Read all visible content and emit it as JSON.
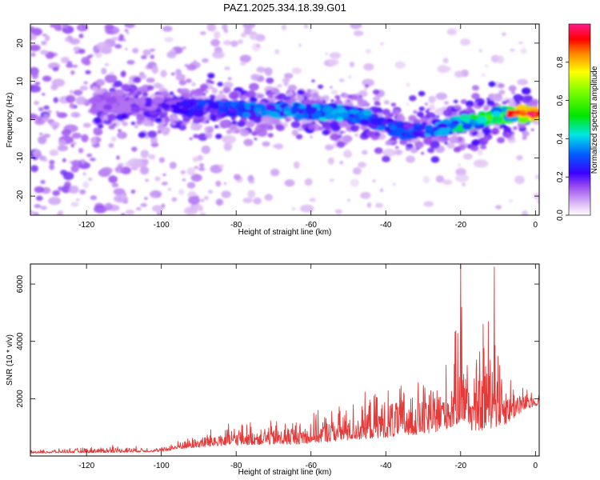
{
  "title": "PAZ1.2025.334.18.39.G01",
  "chart_data": [
    {
      "type": "heatmap",
      "xlabel": "Height of straight line (km)",
      "ylabel": "Frequency (Hz)",
      "xlim": [
        -135,
        1
      ],
      "ylim": [
        -25,
        25
      ],
      "xticks": [
        -120,
        -100,
        -80,
        -60,
        -40,
        -20,
        0
      ],
      "yticks": [
        -20,
        -10,
        0,
        10,
        20
      ],
      "colorbar": {
        "label": "Normalized spectral amplitude",
        "range": [
          0,
          1
        ],
        "ticks": [
          0.0,
          0.2,
          0.4,
          0.6,
          0.8
        ]
      },
      "ridge": {
        "description": "Dominant frequency ridge vs height",
        "points": [
          {
            "x": -115,
            "y": 4,
            "amp": 0.15
          },
          {
            "x": -100,
            "y": 3.5,
            "amp": 0.2
          },
          {
            "x": -85,
            "y": 3,
            "amp": 0.3
          },
          {
            "x": -70,
            "y": 2.5,
            "amp": 0.35
          },
          {
            "x": -55,
            "y": 2,
            "amp": 0.4
          },
          {
            "x": -45,
            "y": 0.5,
            "amp": 0.35
          },
          {
            "x": -35,
            "y": -3,
            "amp": 0.3
          },
          {
            "x": -25,
            "y": -2,
            "amp": 0.4
          },
          {
            "x": -15,
            "y": 0,
            "amp": 0.5
          },
          {
            "x": -7,
            "y": 1.5,
            "amp": 0.6
          },
          {
            "x": 0,
            "y": 1.5,
            "amp": 1.0
          }
        ]
      }
    },
    {
      "type": "line",
      "xlabel": "Height of straight line (km)",
      "ylabel": "SNR (10 * v/v)",
      "xlim": [
        -135,
        1
      ],
      "ylim": [
        0,
        6700
      ],
      "xticks": [
        -120,
        -100,
        -80,
        -60,
        -40,
        -20,
        0
      ],
      "yticks": [
        2000,
        4000,
        6000
      ],
      "series": [
        {
          "name": "SNR",
          "color": "#e53a3a",
          "envelope": [
            {
              "x": -135,
              "base": 100,
              "peak": 200
            },
            {
              "x": -113,
              "base": 120,
              "peak": 380
            },
            {
              "x": -100,
              "base": 150,
              "peak": 320
            },
            {
              "x": -95,
              "base": 250,
              "peak": 600
            },
            {
              "x": -85,
              "base": 350,
              "peak": 1100
            },
            {
              "x": -75,
              "base": 400,
              "peak": 1300
            },
            {
              "x": -65,
              "base": 400,
              "peak": 1400
            },
            {
              "x": -55,
              "base": 500,
              "peak": 1700
            },
            {
              "x": -45,
              "base": 600,
              "peak": 2300
            },
            {
              "x": -35,
              "base": 700,
              "peak": 2700
            },
            {
              "x": -28,
              "base": 800,
              "peak": 3000
            },
            {
              "x": -22,
              "base": 1000,
              "peak": 3700
            },
            {
              "x": -20,
              "base": 1200,
              "peak": 6700
            },
            {
              "x": -17,
              "base": 900,
              "peak": 3500
            },
            {
              "x": -14,
              "base": 900,
              "peak": 4600
            },
            {
              "x": -11,
              "base": 1000,
              "peak": 6600
            },
            {
              "x": -8,
              "base": 1100,
              "peak": 3300
            },
            {
              "x": -3,
              "base": 1600,
              "peak": 2500
            },
            {
              "x": 1,
              "base": 1800,
              "peak": 2200
            }
          ]
        }
      ]
    }
  ]
}
